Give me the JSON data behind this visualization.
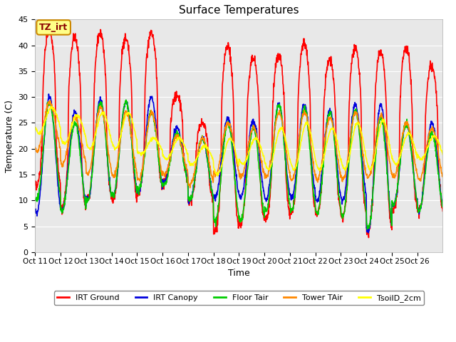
{
  "title": "Surface Temperatures",
  "xlabel": "Time",
  "ylabel": "Temperature (C)",
  "ylim": [
    0,
    45
  ],
  "yticks": [
    0,
    5,
    10,
    15,
    20,
    25,
    30,
    35,
    40,
    45
  ],
  "xtick_labels": [
    "Oct 11",
    "Oct 12",
    "Oct 13",
    "Oct 14",
    "Oct 15",
    "Oct 16",
    "Oct 17",
    "Oct 18",
    "Oct 19",
    "Oct 20",
    "Oct 21",
    "Oct 22",
    "Oct 23",
    "Oct 24",
    "Oct 25",
    "Oct 26"
  ],
  "series": {
    "IRT Ground": {
      "color": "#ff0000",
      "linewidth": 1.2
    },
    "IRT Canopy": {
      "color": "#0000dd",
      "linewidth": 1.2
    },
    "Floor Tair": {
      "color": "#00cc00",
      "linewidth": 1.2
    },
    "Tower TAir": {
      "color": "#ff8800",
      "linewidth": 1.2
    },
    "TsoilD_2cm": {
      "color": "#ffff00",
      "linewidth": 1.2
    }
  },
  "annotation_text": "TZ_irt",
  "annotation_bg": "#ffff88",
  "annotation_border": "#cc8800",
  "ax_bg_color": "#e8e8e8",
  "n_points_per_day": 96,
  "n_days": 16,
  "day_peaks": {
    "IRT_Ground": [
      43,
      41.5,
      42.5,
      41.5,
      42.5,
      30.5,
      25,
      40,
      37.5,
      38,
      40.5,
      37,
      39.5,
      39,
      39.5,
      36
    ],
    "IRT_Ground_night": [
      12.5,
      8.0,
      10.0,
      10.0,
      11.5,
      13.5,
      10,
      4.0,
      5.5,
      6.5,
      7.5,
      7.5,
      6.5,
      4.0,
      8.0,
      8.0
    ],
    "IRT_Canopy": [
      30,
      27,
      29.5,
      29,
      30,
      24,
      22,
      26,
      25.5,
      28.5,
      28.5,
      27.5,
      28.5,
      28.5,
      25,
      25
    ],
    "IRT_Canopy_night": [
      7.5,
      8.0,
      10.0,
      11.0,
      11.5,
      13.5,
      10,
      10.5,
      10.5,
      10.0,
      10.5,
      10.0,
      10.0,
      4.0,
      9.0,
      8.0
    ],
    "Floor_Tair": [
      29,
      25,
      29,
      29,
      27,
      23,
      22,
      25,
      24,
      28.5,
      28,
      27,
      27.5,
      26,
      25,
      23
    ],
    "Floor_Tair_night": [
      10,
      8.0,
      10,
      11,
      12,
      13,
      10,
      6.0,
      6.0,
      8.0,
      8.0,
      7.5,
      7.0,
      4.5,
      9.0,
      8.0
    ],
    "Tower_TAir": [
      29,
      26,
      28,
      27,
      27,
      22.5,
      22,
      25,
      24,
      27,
      27,
      26,
      27,
      26.5,
      25,
      24
    ],
    "Tower_TAir_night": [
      19.5,
      17,
      15,
      14.5,
      14,
      15,
      13,
      15,
      14.5,
      14.5,
      14,
      14,
      14,
      14.5,
      14.5,
      14
    ],
    "TsoilD_2cm": [
      28,
      26.5,
      27,
      27,
      22,
      22,
      20.5,
      22,
      22,
      24,
      25,
      24,
      25,
      25.5,
      23,
      22.5
    ],
    "TsoilD_2cm_night": [
      23,
      21,
      20,
      20,
      19,
      18,
      17,
      15,
      17,
      16,
      16,
      16,
      16,
      16,
      17,
      18
    ]
  }
}
